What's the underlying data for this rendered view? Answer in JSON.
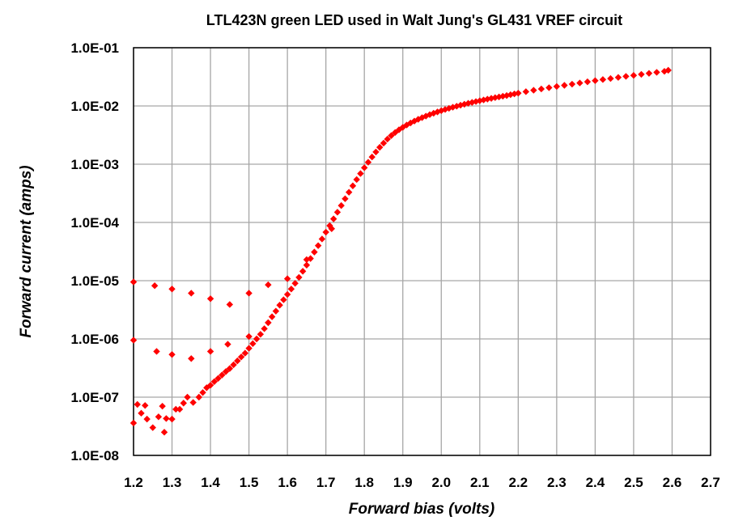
{
  "chart_data": {
    "type": "scatter",
    "title": "LTL423N green LED used in Walt Jung's GL431 VREF circuit",
    "xlabel": "Forward  bias  (volts)",
    "ylabel": "Forward  current  (amps)",
    "xlim": [
      1.2,
      2.7
    ],
    "ylim": [
      1e-08,
      0.1
    ],
    "y_scale": "log",
    "grid": true,
    "legend": "none",
    "marker": "diamond",
    "point_color": "#ff0000",
    "x_ticks": [
      "1.2",
      "1.3",
      "1.4",
      "1.5",
      "1.6",
      "1.7",
      "1.8",
      "1.9",
      "2.0",
      "2.1",
      "2.2",
      "2.3",
      "2.4",
      "2.5",
      "2.6",
      "2.7"
    ],
    "y_ticks": [
      "1.0E-08",
      "1.0E-07",
      "1.0E-06",
      "1.0E-05",
      "1.0E-04",
      "1.0E-03",
      "1.0E-02",
      "1.0E-01"
    ],
    "series": [
      {
        "name": "",
        "x": [
          1.2,
          1.21,
          1.22,
          1.23,
          1.235,
          1.25,
          1.265,
          1.275,
          1.28,
          1.285,
          1.3,
          1.31,
          1.32,
          1.33,
          1.34,
          1.355,
          1.37,
          1.38,
          1.39,
          1.4,
          1.41,
          1.42,
          1.43,
          1.44,
          1.45,
          1.46,
          1.47,
          1.48,
          1.49,
          1.5,
          1.51,
          1.52,
          1.53,
          1.54,
          1.55,
          1.56,
          1.57,
          1.58,
          1.59,
          1.6,
          1.61,
          1.62,
          1.63,
          1.64,
          1.65,
          1.66,
          1.67,
          1.68,
          1.69,
          1.7,
          1.71,
          1.72,
          1.73,
          1.74,
          1.75,
          1.76,
          1.77,
          1.78,
          1.79,
          1.8,
          1.81,
          1.82,
          1.83,
          1.84,
          1.85,
          1.86,
          1.87,
          1.88,
          1.89,
          1.9,
          1.91,
          1.92,
          1.93,
          1.94,
          1.95,
          1.96,
          1.97,
          1.98,
          1.99,
          2.0,
          2.01,
          2.02,
          2.03,
          2.04,
          2.05,
          2.06,
          2.07,
          2.08,
          2.09,
          2.1,
          2.11,
          2.12,
          2.13,
          2.14,
          2.15,
          2.16,
          2.17,
          2.18,
          2.19,
          2.2,
          2.22,
          2.24,
          2.26,
          2.28,
          2.3,
          2.32,
          2.34,
          2.36,
          2.38,
          2.4,
          2.42,
          2.44,
          2.46,
          2.48,
          2.5,
          2.52,
          2.54,
          2.56,
          2.58,
          2.59,
          1.2,
          1.2,
          1.255,
          1.3,
          1.35,
          1.4,
          1.45,
          1.5,
          1.55,
          1.6,
          1.26,
          1.3,
          1.35,
          1.4,
          1.445,
          1.5,
          1.55,
          1.65,
          1.715
        ],
        "y": [
          3.6e-08,
          7.5e-08,
          5.3e-08,
          7.2e-08,
          4.2e-08,
          3e-08,
          4.6e-08,
          7e-08,
          2.5e-08,
          4.3e-08,
          4.2e-08,
          6.2e-08,
          6.2e-08,
          7.9e-08,
          1e-07,
          8.1e-08,
          1e-07,
          1.2e-07,
          1.45e-07,
          1.6e-07,
          1.85e-07,
          2.1e-07,
          2.4e-07,
          2.75e-07,
          3.1e-07,
          3.6e-07,
          4.2e-07,
          4.9e-07,
          5.7e-07,
          6.9e-07,
          8.3e-07,
          1e-06,
          1.2e-06,
          1.5e-06,
          1.9e-06,
          2.4e-06,
          3e-06,
          3.8e-06,
          4.7e-06,
          5.8e-06,
          7.2e-06,
          9e-06,
          1.14e-05,
          1.45e-05,
          1.85e-05,
          2.4e-05,
          3.1e-05,
          4e-05,
          5.2e-05,
          6.8e-05,
          8.8e-05,
          0.000115,
          0.00015,
          0.000195,
          0.000255,
          0.00033,
          0.000425,
          0.000545,
          0.00069,
          0.00087,
          0.00108,
          0.00133,
          0.00162,
          0.00195,
          0.0023,
          0.0027,
          0.0031,
          0.0035,
          0.0039,
          0.0043,
          0.0047,
          0.0051,
          0.0055,
          0.0059,
          0.0063,
          0.0067,
          0.0071,
          0.0075,
          0.0079,
          0.0083,
          0.0087,
          0.0091,
          0.0095,
          0.0099,
          0.0103,
          0.0107,
          0.0111,
          0.0115,
          0.0119,
          0.0123,
          0.0127,
          0.0131,
          0.0135,
          0.0139,
          0.0143,
          0.0147,
          0.0151,
          0.0156,
          0.0161,
          0.0166,
          0.0176,
          0.0186,
          0.0196,
          0.0206,
          0.0216,
          0.0226,
          0.0237,
          0.0248,
          0.026,
          0.0272,
          0.0284,
          0.0296,
          0.0309,
          0.0322,
          0.0335,
          0.0349,
          0.0363,
          0.0378,
          0.0393,
          0.041,
          9.5e-06,
          9.5e-07,
          8.2e-06,
          7.2e-06,
          6.1e-06,
          4.9e-06,
          3.9e-06,
          6.1e-06,
          8.5e-06,
          1.08e-05,
          6.1e-07,
          5.4e-07,
          4.6e-07,
          6.1e-07,
          8.1e-07,
          1.1e-06,
          1.9e-06,
          2.3e-05,
          7.8e-05
        ]
      }
    ]
  }
}
